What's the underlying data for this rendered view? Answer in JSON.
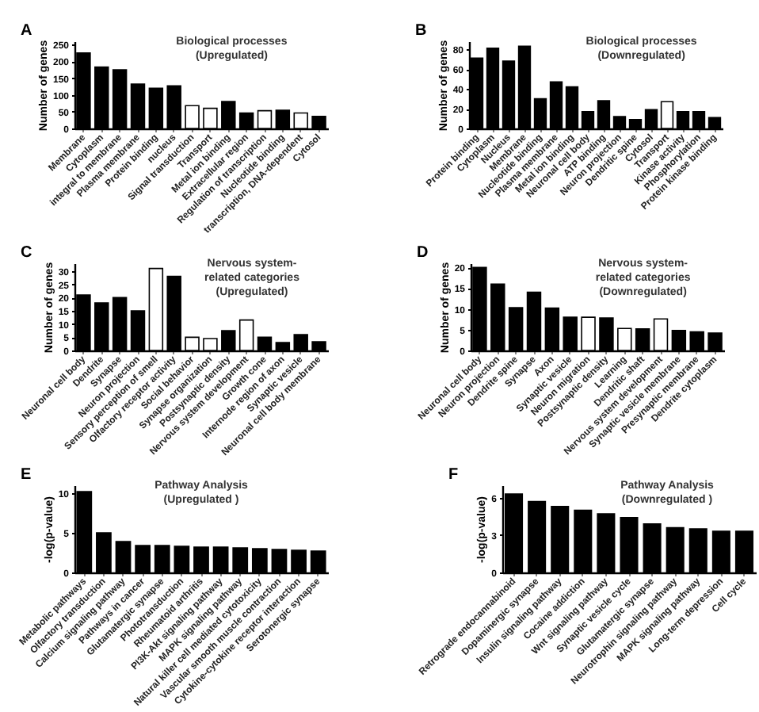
{
  "chart_data": [
    {
      "type": "bar",
      "title": "Biological processes",
      "subtitle": "(Upregulated)",
      "ylabel": "Number of genes",
      "annotations": [
        "A"
      ],
      "categories": [
        "Membrane",
        "Cytoplasm",
        "integral to membrane",
        "Plasma membrane",
        "Protein binding",
        "nucleus",
        "Signal transduction",
        "Transport",
        "Metal ion binding",
        "Extracellular region",
        "Regulation of transcription",
        "Nucleotide binding",
        "transcription, DNA-dependent",
        "Cytosol"
      ],
      "values": [
        225,
        183,
        175,
        132,
        120,
        127,
        68,
        60,
        80,
        46,
        53,
        54,
        46,
        36
      ],
      "colors": [
        "#000000",
        "#000000",
        "#000000",
        "#000000",
        "#000000",
        "#000000",
        "#ffffff",
        "#ffffff",
        "#000000",
        "#000000",
        "#ffffff",
        "#000000",
        "#ffffff",
        "#000000"
      ],
      "ylim": [
        0,
        260
      ],
      "yticks": [
        0,
        50,
        100,
        150,
        200,
        250
      ]
    },
    {
      "type": "bar",
      "title": "Biological processes",
      "subtitle": "(Downregulated)",
      "ylabel": "Number of genes",
      "annotations": [
        "B"
      ],
      "categories": [
        "Protein binding",
        "Cytoplasm",
        "Nucleus",
        "Membrane",
        "Nucleotide binding",
        "Plasma membrane",
        "Metal ion binding",
        "Neuronal cell body",
        "ATP binding",
        "Neuron projection",
        "Dendritic spine",
        "Cytosol",
        "Transport",
        "Kinase activity",
        "Phosphorylation",
        "Protein kinase binding"
      ],
      "values": [
        71,
        81,
        68,
        83,
        30,
        47,
        42,
        17,
        28,
        12,
        9,
        19,
        27,
        17,
        17,
        11
      ],
      "colors": [
        "#000000",
        "#000000",
        "#000000",
        "#000000",
        "#000000",
        "#000000",
        "#000000",
        "#000000",
        "#000000",
        "#000000",
        "#000000",
        "#000000",
        "#ffffff",
        "#000000",
        "#000000",
        "#000000"
      ],
      "ylim": [
        0,
        88
      ],
      "yticks": [
        0,
        20,
        40,
        60,
        80
      ]
    },
    {
      "type": "bar",
      "title": "Nervous system-related categories",
      "subtitle": "(Upregulated)",
      "ylabel": "Number of genes",
      "annotations": [
        "C"
      ],
      "categories": [
        "Neuronal cell body",
        "Dendrite",
        "Synapse",
        "Neuron projection",
        "Sensory perception of smell",
        "Olfactory receptor activity",
        "Social behavior",
        "Synapse organization",
        "Postsynaptic density",
        "Nervous system development",
        "Growth cone",
        "Internode region of axon",
        "Synaptic vesicle",
        "Neuronal cell body membrane"
      ],
      "values": [
        21,
        18,
        20,
        15,
        31,
        28,
        5,
        4.5,
        7.5,
        11.5,
        5,
        3,
        6,
        3.3
      ],
      "colors": [
        "#000000",
        "#000000",
        "#000000",
        "#000000",
        "#ffffff",
        "#000000",
        "#ffffff",
        "#ffffff",
        "#000000",
        "#ffffff",
        "#000000",
        "#000000",
        "#000000",
        "#000000"
      ],
      "ylim": [
        0,
        33
      ],
      "yticks": [
        0,
        5,
        10,
        15,
        20,
        25,
        30
      ]
    },
    {
      "type": "bar",
      "title": "Nervous system-related categories",
      "subtitle": "(Downregulated)",
      "ylabel": "Number of genes",
      "annotations": [
        "D"
      ],
      "categories": [
        "Neuronal cell body",
        "Neuron projection",
        "Dendrite spine",
        "Synapse",
        "Axon",
        "Synaptic vesicle",
        "Neuron migration",
        "Postsynaptic density",
        "Learning",
        "Dendritic shaft",
        "Nervous system development",
        "Synaptic vesicle membrane",
        "Presynaptic membrane",
        "Dendrite cytoplasm"
      ],
      "values": [
        20,
        16,
        10.3,
        14,
        10.2,
        8,
        8,
        7.8,
        5.3,
        5.2,
        7.6,
        4.8,
        4.5,
        4.2
      ],
      "colors": [
        "#000000",
        "#000000",
        "#000000",
        "#000000",
        "#000000",
        "#000000",
        "#ffffff",
        "#000000",
        "#ffffff",
        "#000000",
        "#ffffff",
        "#000000",
        "#000000",
        "#000000"
      ],
      "ylim": [
        0,
        21
      ],
      "yticks": [
        0,
        5,
        10,
        15,
        20
      ]
    },
    {
      "type": "bar",
      "title": "Pathway Analysis",
      "subtitle": "(Upregulated )",
      "ylabel": "-log(p-value)",
      "annotations": [
        "E"
      ],
      "categories": [
        "Metabolic pathways",
        "Olfactory transduction",
        "Calcium signaling pathway",
        "Pathways in cancer",
        "Glutamatergic synapse",
        "Phototransduction",
        "Rheumatoid arthritis",
        "PI3K-Akt signaling pathway",
        "MAPK signaling pathway",
        "Natural killer cell mediated cytotoxicity",
        "Vascular smooth muscle contraction",
        "Cytokine-cytokine receptor interaction",
        "Serotonergic synapse"
      ],
      "values": [
        10.2,
        5,
        3.9,
        3.4,
        3.4,
        3.3,
        3.2,
        3.2,
        3.1,
        3.0,
        2.9,
        2.8,
        2.7
      ],
      "colors": [
        "#000000",
        "#000000",
        "#000000",
        "#000000",
        "#000000",
        "#000000",
        "#000000",
        "#000000",
        "#000000",
        "#000000",
        "#000000",
        "#000000",
        "#000000"
      ],
      "ylim": [
        0,
        11
      ],
      "yticks": [
        0,
        5,
        10
      ]
    },
    {
      "type": "bar",
      "title": "Pathway Analysis",
      "subtitle": "(Downregulated )",
      "ylabel": "-log(p-value)",
      "annotations": [
        "F"
      ],
      "categories": [
        "Retrograde endocannabinoid",
        "Dopaminergic synapse",
        "Insulin signaling pathway",
        "Cocaine addiction",
        "Wnt signaling pathway",
        "Synaptic vesicle cycle",
        "Glutamatergic synapse",
        "Neurotrophin signaling pathway",
        "MAPK signaling pathway",
        "Long-term depression",
        "Cell cycle"
      ],
      "values": [
        6.3,
        5.7,
        5.3,
        5.0,
        4.7,
        4.4,
        3.9,
        3.6,
        3.5,
        3.3,
        3.3
      ],
      "colors": [
        "#000000",
        "#000000",
        "#000000",
        "#000000",
        "#000000",
        "#000000",
        "#000000",
        "#000000",
        "#000000",
        "#000000",
        "#000000"
      ],
      "ylim": [
        0,
        7
      ],
      "yticks": [
        0,
        3,
        6
      ]
    }
  ]
}
